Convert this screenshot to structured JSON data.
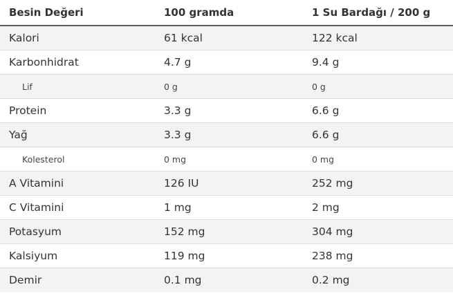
{
  "table": {
    "headers": [
      "Besin Değeri",
      "100 gramda",
      "1 Su Bardağı / 200 g"
    ],
    "rows": [
      {
        "name": "Kalori",
        "per100": "61 kcal",
        "perCup": "122 kcal"
      },
      {
        "name": "Karbonhidrat",
        "per100": "4.7 g",
        "perCup": "9.4 g"
      },
      {
        "name": "Lif",
        "per100": "0 g",
        "perCup": "0 g"
      },
      {
        "name": "Protein",
        "per100": "3.3 g",
        "perCup": "6.6 g"
      },
      {
        "name": "Yağ",
        "per100": "3.3 g",
        "perCup": "6.6 g"
      },
      {
        "name": "Kolesterol",
        "per100": "0 mg",
        "perCup": "0 mg"
      },
      {
        "name": "A Vitamini",
        "per100": "126 IU",
        "perCup": "252 mg"
      },
      {
        "name": "C Vitamini",
        "per100": "1 mg",
        "perCup": "2 mg"
      },
      {
        "name": "Potasyum",
        "per100": "152 mg",
        "perCup": "304 mg"
      },
      {
        "name": "Kalsiyum",
        "per100": "119 mg",
        "perCup": "238 mg"
      },
      {
        "name": "Demir",
        "per100": "0.1 mg",
        "perCup": "0.2 mg"
      }
    ]
  }
}
